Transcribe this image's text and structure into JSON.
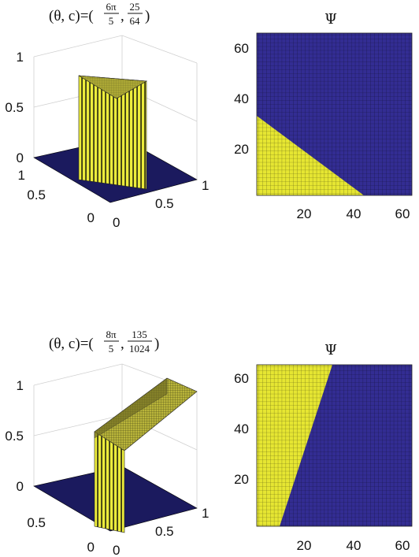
{
  "chart_data": [
    {
      "type": "surface",
      "title_prefix": "(θ, c)=(",
      "theta_num": "6π",
      "theta_den": "5",
      "c_num": "25",
      "c_den": "64",
      "title_suffix": ")",
      "x_ticks": [
        "0",
        "0.5",
        "1"
      ],
      "y_ticks": [
        "0",
        "0.5",
        "1"
      ],
      "z_ticks": [
        "0",
        "0.5",
        "1"
      ],
      "xlim": [
        0,
        1
      ],
      "ylim": [
        0,
        1
      ],
      "zlim": [
        0,
        1
      ],
      "levels": [
        "0",
        "1"
      ],
      "colors": {
        "low": "#1b1a5e",
        "high": "#ecec3c",
        "high_shade": "#8c8c2a"
      }
    },
    {
      "type": "heatmap",
      "title": "Ψ",
      "x_ticks": [
        "20",
        "40",
        "60"
      ],
      "y_ticks": [
        "20",
        "40",
        "60"
      ],
      "xlim": [
        1,
        64
      ],
      "ylim": [
        1,
        64
      ],
      "grid": true,
      "boundary": [
        [
          1,
          33
        ],
        [
          44,
          1
        ]
      ],
      "region_value_below_boundary": 1,
      "colors": {
        "zero": "#332d93",
        "one": "#e6e632"
      }
    },
    {
      "type": "surface",
      "title_prefix": "(θ, c)=(",
      "theta_num": "8π",
      "theta_den": "5",
      "c_num": "135",
      "c_den": "1024",
      "title_suffix": ")",
      "x_ticks": [
        "0",
        "0.5",
        "1"
      ],
      "y_ticks": [
        "0",
        "0.5",
        "1"
      ],
      "z_ticks": [
        "0",
        "0.5",
        "1"
      ],
      "xlim": [
        0,
        1
      ],
      "ylim": [
        0,
        1
      ],
      "zlim": [
        0,
        1
      ],
      "levels": [
        "0",
        "1"
      ],
      "colors": {
        "low": "#1b1a5e",
        "high": "#ecec3c",
        "high_shade": "#8c8c2a"
      }
    },
    {
      "type": "heatmap",
      "title": "Ψ",
      "x_ticks": [
        "20",
        "40",
        "60"
      ],
      "y_ticks": [
        "20",
        "40",
        "60"
      ],
      "xlim": [
        1,
        64
      ],
      "ylim": [
        1,
        64
      ],
      "grid": true,
      "boundary": [
        [
          10,
          1
        ],
        [
          32,
          64
        ]
      ],
      "region_value_left_of_boundary": 1,
      "colors": {
        "zero": "#332d93",
        "one": "#e6e632"
      }
    }
  ]
}
